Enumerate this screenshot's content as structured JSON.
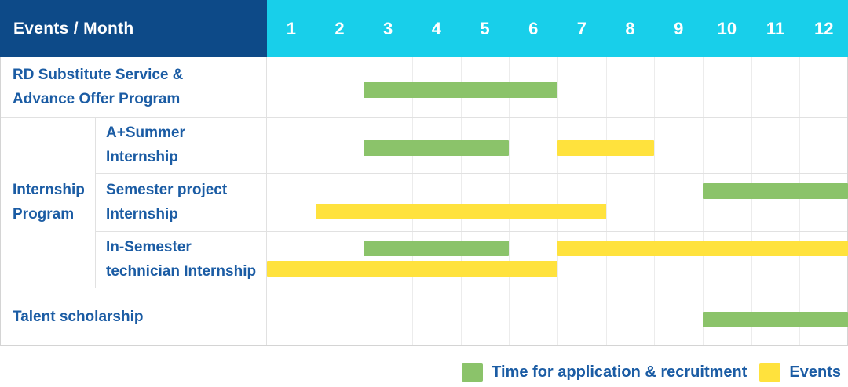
{
  "header": {
    "label": "Events / Month",
    "months": [
      "1",
      "2",
      "3",
      "4",
      "5",
      "6",
      "7",
      "8",
      "9",
      "10",
      "11",
      "12"
    ]
  },
  "colors": {
    "header_navy": "#0D4A88",
    "months_cyan": "#18CFEA",
    "recruitment_green": "#8BC36A",
    "event_yellow": "#FFE23D",
    "label_blue": "#1B5CA4",
    "gridline_gray": "#ECECEC",
    "rowline_gray": "#E1E1E1",
    "border_gray": "#D4D4D4"
  },
  "chart_data": {
    "type": "gantt",
    "x_unit": "month",
    "x_range": [
      1,
      12
    ],
    "grid": true,
    "legend_position": "bottom-right",
    "group": {
      "label_lines": [
        "Internship",
        "Program"
      ],
      "member_row_indexes": [
        1,
        2,
        3
      ]
    },
    "rows": [
      {
        "label_lines": [
          "RD Substitute Service &",
          "Advance Offer Program"
        ],
        "group_member": false,
        "bars": [
          {
            "kind": "recruitment",
            "start_month": 3,
            "end_month": 6,
            "track": "single"
          }
        ]
      },
      {
        "label_lines": [
          "A+Summer",
          "Internship"
        ],
        "group_member": true,
        "bars": [
          {
            "kind": "recruitment",
            "start_month": 3,
            "end_month": 5,
            "track": "single"
          },
          {
            "kind": "event",
            "start_month": 7,
            "end_month": 8,
            "track": "single"
          }
        ]
      },
      {
        "label_lines": [
          "Semester project",
          "Internship"
        ],
        "group_member": true,
        "bars": [
          {
            "kind": "recruitment",
            "start_month": 10,
            "end_month": 12,
            "track": "upper"
          },
          {
            "kind": "event",
            "start_month": 2,
            "end_month": 7,
            "track": "lower"
          }
        ]
      },
      {
        "label_lines": [
          "In-Semester",
          "technician Internship"
        ],
        "group_member": true,
        "bars": [
          {
            "kind": "recruitment",
            "start_month": 3,
            "end_month": 5,
            "track": "upper"
          },
          {
            "kind": "event",
            "start_month": 7,
            "end_month": 12,
            "track": "upper"
          },
          {
            "kind": "event",
            "start_month": 1,
            "end_month": 6,
            "track": "lower"
          }
        ]
      },
      {
        "label_lines": [
          "Talent scholarship"
        ],
        "group_member": false,
        "bars": [
          {
            "kind": "recruitment",
            "start_month": 10,
            "end_month": 12,
            "track": "single"
          }
        ]
      }
    ]
  },
  "legend": {
    "items": [
      {
        "kind": "recruitment",
        "label": "Time for application & recruitment"
      },
      {
        "kind": "event",
        "label": "Events"
      }
    ]
  }
}
